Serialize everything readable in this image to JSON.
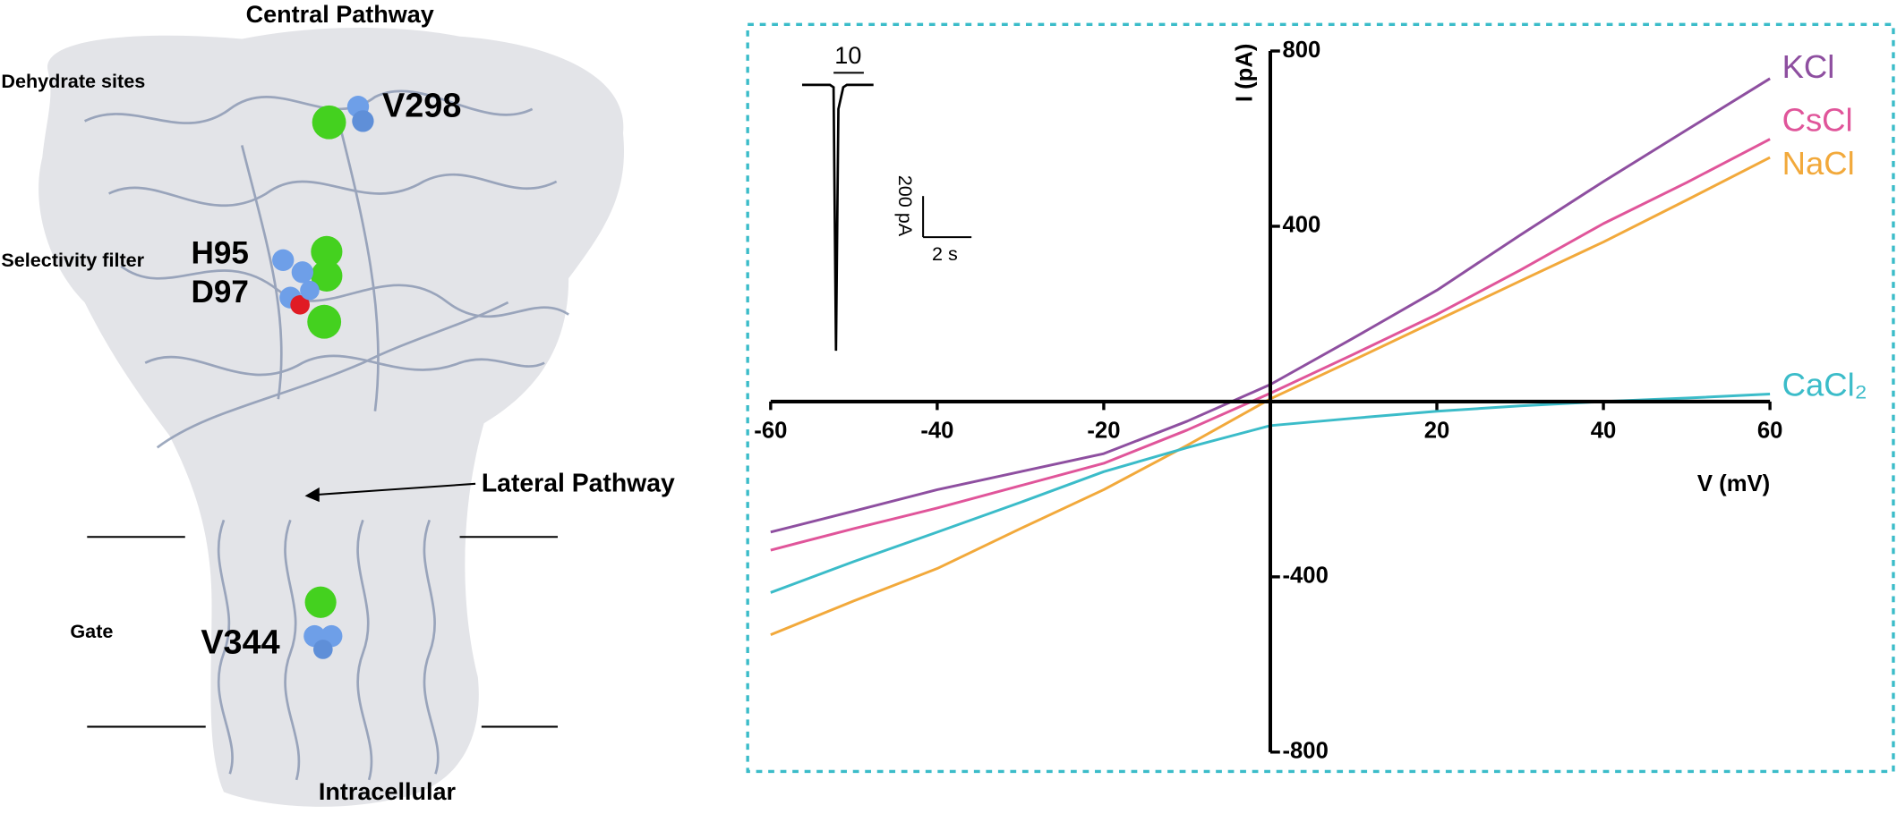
{
  "diagram": {
    "central_pathway": "Central Pathway",
    "dehydrate_sites": "Dehydrate sites",
    "v298": "V298",
    "selectivity_filter": "Selectivity filter",
    "h95": "H95",
    "d97": "D97",
    "lateral_pathway": "Lateral Pathway",
    "gate": "Gate",
    "v344": "V344",
    "intracellular": "Intracellular"
  },
  "chart_data": {
    "type": "line",
    "xlabel": "V (mV)",
    "ylabel": "I (pA)",
    "x": [
      -60,
      -50,
      -40,
      -30,
      -20,
      -10,
      0,
      10,
      20,
      30,
      40,
      50,
      60
    ],
    "series": [
      {
        "name": "KCl",
        "color": "#8e4fa0",
        "values": [
          -298,
          -250,
          -201,
          -160,
          -119,
          -45,
          39,
          145,
          254,
          380,
          502,
          620,
          737
        ]
      },
      {
        "name": "CsCl",
        "color": "#e0559a",
        "values": [
          -339,
          -290,
          -243,
          -192,
          -141,
          -65,
          19,
          108,
          199,
          300,
          406,
          500,
          599
        ]
      },
      {
        "name": "NaCl",
        "color": "#f2a93b",
        "values": [
          -532,
          -455,
          -381,
          -290,
          -201,
          -100,
          6,
          95,
          185,
          275,
          364,
          460,
          557
        ]
      },
      {
        "name": "CaCl₂",
        "color": "#3bbcc9",
        "values": [
          -436,
          -365,
          -298,
          -230,
          -160,
          -105,
          -55,
          -38,
          -22,
          -10,
          0,
          8,
          17
        ]
      }
    ],
    "xlim": [
      -60,
      60
    ],
    "ylim": [
      -800,
      800
    ],
    "xticks": [
      -60,
      -40,
      -20,
      20,
      40,
      60
    ],
    "yticks": [
      -800,
      -400,
      400,
      800
    ],
    "inset": {
      "stimulus_label": "10",
      "scale_y_label": "200 pA",
      "scale_x_label": "2 s"
    }
  }
}
